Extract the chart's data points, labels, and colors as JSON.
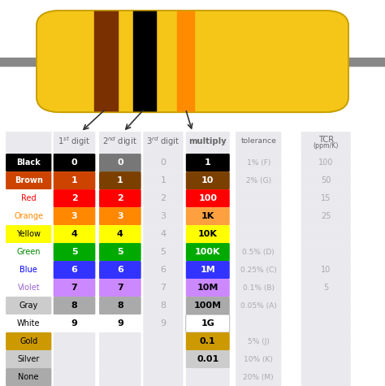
{
  "resistor_body_color": "#F5C518",
  "lead_color": "#888888",
  "band1_color": "#7B3000",
  "band2_color": "#000000",
  "band3_color": "#FF8C00",
  "rows": [
    {
      "name": "Black",
      "name_bg": "#000000",
      "name_tc": "#FFFFFF",
      "d1": "0",
      "d2": "0",
      "d3": "0",
      "d1_bg": "#000000",
      "d2_bg": "#777777",
      "d1_tc": "#FFFFFF",
      "d2_tc": "#FFFFFF",
      "mult": "1",
      "mult_bg": "#000000",
      "mult_tc": "#FFFFFF",
      "tol": "1% (F)",
      "tcr": "100"
    },
    {
      "name": "Brown",
      "name_bg": "#CC4400",
      "name_tc": "#FFFFFF",
      "d1": "1",
      "d2": "1",
      "d3": "1",
      "d1_bg": "#CC4400",
      "d2_bg": "#7B3F00",
      "d1_tc": "#FFFFFF",
      "d2_tc": "#FFFFFF",
      "mult": "10",
      "mult_bg": "#7B3F00",
      "mult_tc": "#FFFFFF",
      "tol": "2% (G)",
      "tcr": "50"
    },
    {
      "name": "Red",
      "name_bg": "#FFFFFF",
      "name_tc": "#FF0000",
      "d1": "2",
      "d2": "2",
      "d3": "2",
      "d1_bg": "#FF0000",
      "d2_bg": "#FF0000",
      "d1_tc": "#FFFFFF",
      "d2_tc": "#FFFFFF",
      "mult": "100",
      "mult_bg": "#FF0000",
      "mult_tc": "#FFFFFF",
      "tol": "",
      "tcr": "15"
    },
    {
      "name": "Orange",
      "name_bg": "#FFFFFF",
      "name_tc": "#FF8800",
      "d1": "3",
      "d2": "3",
      "d3": "3",
      "d1_bg": "#FF8800",
      "d2_bg": "#FF8800",
      "d1_tc": "#FFFFFF",
      "d2_tc": "#FFFFFF",
      "mult": "1K",
      "mult_bg": "#FFA040",
      "mult_tc": "#000000",
      "tol": "",
      "tcr": "25"
    },
    {
      "name": "Yellow",
      "name_bg": "#FFFF00",
      "name_tc": "#000000",
      "d1": "4",
      "d2": "4",
      "d3": "4",
      "d1_bg": "#FFFF00",
      "d2_bg": "#FFFF00",
      "d1_tc": "#000000",
      "d2_tc": "#000000",
      "mult": "10K",
      "mult_bg": "#FFFF00",
      "mult_tc": "#000000",
      "tol": "",
      "tcr": ""
    },
    {
      "name": "Green",
      "name_bg": "#FFFFFF",
      "name_tc": "#008800",
      "d1": "5",
      "d2": "5",
      "d3": "5",
      "d1_bg": "#00AA00",
      "d2_bg": "#00AA00",
      "d1_tc": "#FFFFFF",
      "d2_tc": "#FFFFFF",
      "mult": "100K",
      "mult_bg": "#00AA00",
      "mult_tc": "#FFFFFF",
      "tol": "0.5% (D)",
      "tcr": ""
    },
    {
      "name": "Blue",
      "name_bg": "#FFFFFF",
      "name_tc": "#0000FF",
      "d1": "6",
      "d2": "6",
      "d3": "6",
      "d1_bg": "#3333FF",
      "d2_bg": "#3333FF",
      "d1_tc": "#FFFFFF",
      "d2_tc": "#FFFFFF",
      "mult": "1M",
      "mult_bg": "#3333FF",
      "mult_tc": "#FFFFFF",
      "tol": "0.25% (C)",
      "tcr": "10"
    },
    {
      "name": "Violet",
      "name_bg": "#FFFFFF",
      "name_tc": "#9966CC",
      "d1": "7",
      "d2": "7",
      "d3": "7",
      "d1_bg": "#CC88FF",
      "d2_bg": "#CC88FF",
      "d1_tc": "#000000",
      "d2_tc": "#000000",
      "mult": "10M",
      "mult_bg": "#CC88FF",
      "mult_tc": "#000000",
      "tol": "0.1% (B)",
      "tcr": "5"
    },
    {
      "name": "Gray",
      "name_bg": "#CCCCCC",
      "name_tc": "#000000",
      "d1": "8",
      "d2": "8",
      "d3": "8",
      "d1_bg": "#AAAAAA",
      "d2_bg": "#AAAAAA",
      "d1_tc": "#000000",
      "d2_tc": "#000000",
      "mult": "100M",
      "mult_bg": "#AAAAAA",
      "mult_tc": "#000000",
      "tol": "0.05% (A)",
      "tcr": ""
    },
    {
      "name": "White",
      "name_bg": "#FFFFFF",
      "name_tc": "#000000",
      "d1": "9",
      "d2": "9",
      "d3": "9",
      "d1_bg": "#FFFFFF",
      "d2_bg": "#FFFFFF",
      "d1_tc": "#000000",
      "d2_tc": "#000000",
      "mult": "1G",
      "mult_bg": "#FFFFFF",
      "mult_tc": "#000000",
      "tol": "",
      "tcr": ""
    },
    {
      "name": "Gold",
      "name_bg": "#CC9900",
      "name_tc": "#000000",
      "d1": "",
      "d2": "",
      "d3": "",
      "d1_bg": null,
      "d2_bg": null,
      "d1_tc": "#000000",
      "d2_tc": "#000000",
      "mult": "0.1",
      "mult_bg": "#CC9900",
      "mult_tc": "#000000",
      "tol": "5% (J)",
      "tcr": ""
    },
    {
      "name": "Silver",
      "name_bg": "#CCCCCC",
      "name_tc": "#000000",
      "d1": "",
      "d2": "",
      "d3": "",
      "d1_bg": null,
      "d2_bg": null,
      "d1_tc": "#000000",
      "d2_tc": "#000000",
      "mult": "0.01",
      "mult_bg": "#CCCCCC",
      "mult_tc": "#000000",
      "tol": "10% (K)",
      "tcr": ""
    },
    {
      "name": "None",
      "name_bg": "#AAAAAA",
      "name_tc": "#000000",
      "d1": "",
      "d2": "",
      "d3": "",
      "d1_bg": null,
      "d2_bg": null,
      "d1_tc": "#000000",
      "d2_tc": "#000000",
      "mult": "",
      "mult_bg": null,
      "mult_tc": "#000000",
      "tol": "20% (M)",
      "tcr": ""
    }
  ],
  "gray_text": "#AAAAAA",
  "light_bg": "#EAEAEE",
  "cell_border": "#CCCCCC"
}
